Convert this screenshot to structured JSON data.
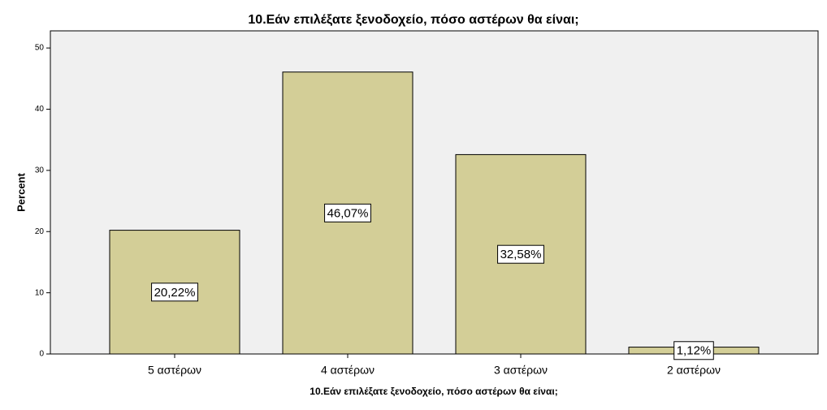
{
  "chart_data": {
    "type": "bar",
    "title": "10.Εάν επιλέξατε ξενοδοχείο, πόσο αστέρων θα είναι;",
    "x_label": "10.Εάν επιλέξατε ξενοδοχείο, πόσο αστέρων θα είναι;",
    "y_label": "Percent",
    "categories": [
      "5 αστέρων",
      "4 αστέρων",
      "3 αστέρων",
      "2 αστέρων"
    ],
    "values": [
      20.22,
      46.07,
      32.58,
      1.12
    ],
    "value_labels": [
      "20,22%",
      "46,07%",
      "32,58%",
      "1,12%"
    ],
    "color": "#d3ce97",
    "ylim": [
      0,
      52.8
    ],
    "yticks": [
      0,
      10,
      20,
      30,
      40,
      50
    ]
  }
}
